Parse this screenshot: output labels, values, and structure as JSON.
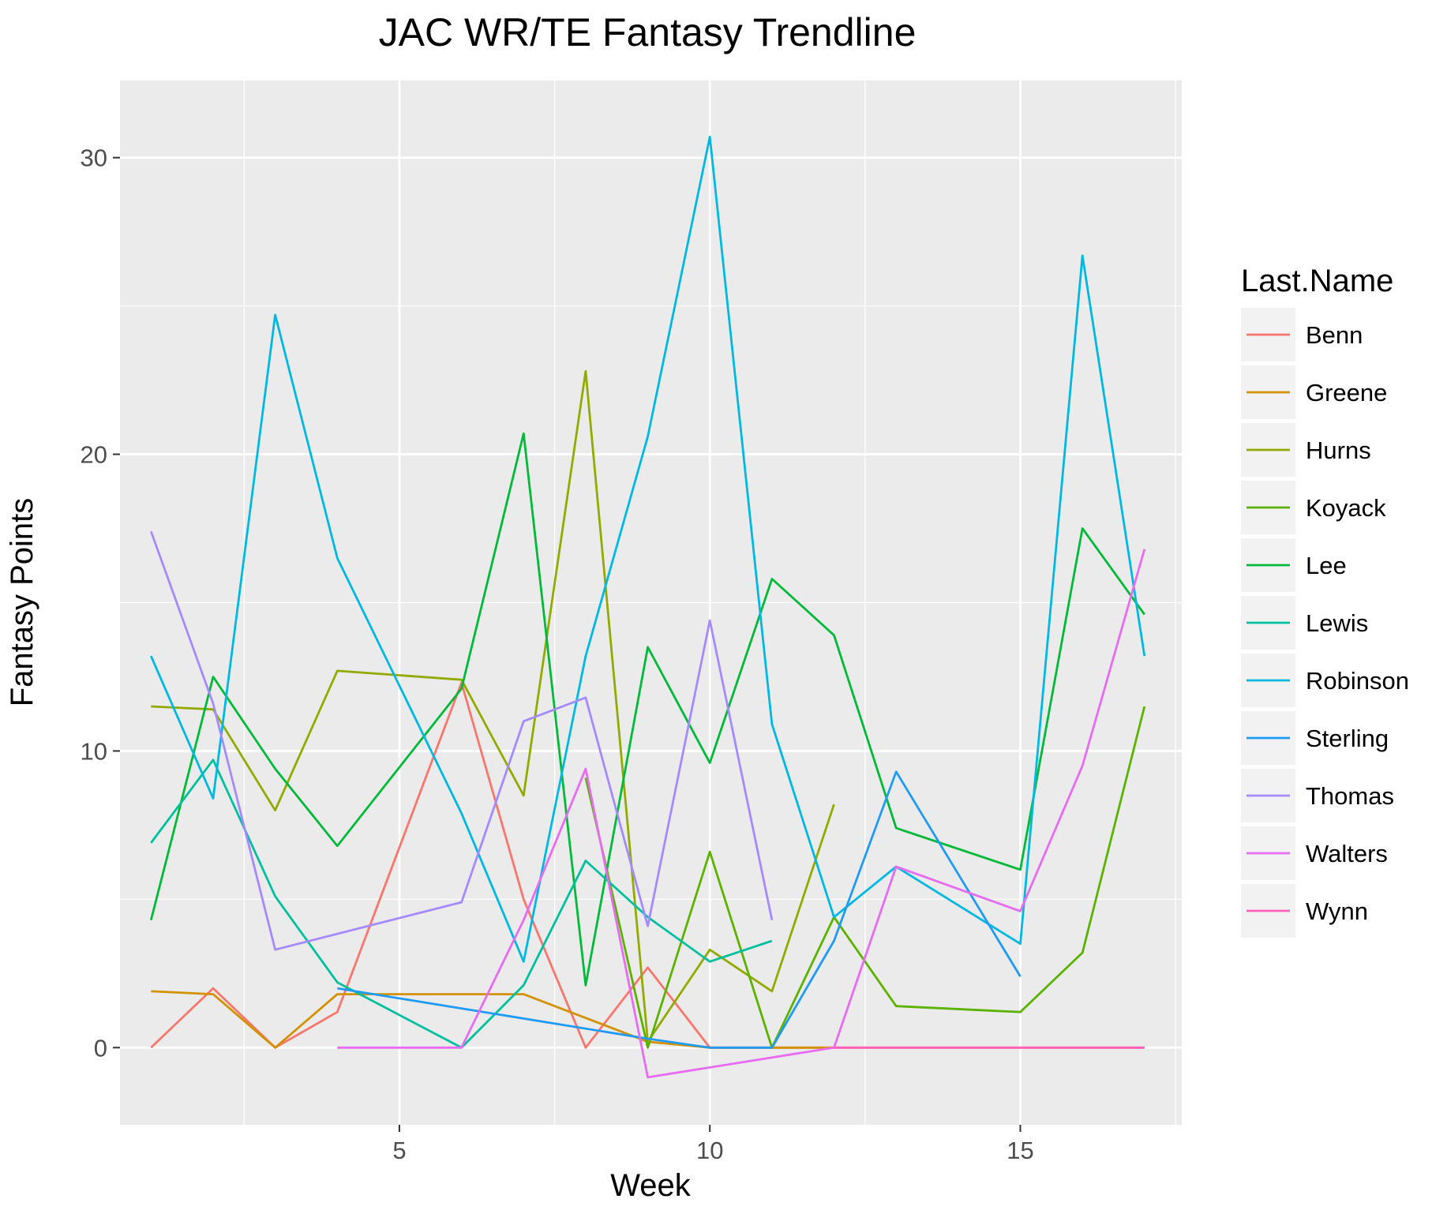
{
  "chart_data": {
    "type": "line",
    "title": "JAC WR/TE Fantasy Trendline",
    "xlabel": "Week",
    "ylabel": "Fantasy Points",
    "xlim": [
      0.5,
      17.6
    ],
    "ylim": [
      -2.6,
      32.6
    ],
    "x_ticks": [
      5,
      10,
      15
    ],
    "y_ticks": [
      0,
      10,
      20,
      30
    ],
    "grid": true,
    "legend": {
      "title": "Last.Name",
      "position": "right"
    },
    "series": [
      {
        "name": "Benn",
        "color": "#F8766D",
        "points": [
          [
            1,
            0
          ],
          [
            2,
            2
          ],
          [
            3,
            0
          ],
          [
            4,
            1.2
          ],
          [
            6,
            12.3
          ],
          [
            7,
            5
          ],
          [
            8,
            0
          ],
          [
            9,
            2.7
          ],
          [
            10,
            0
          ],
          [
            11,
            0
          ],
          [
            12,
            0
          ],
          [
            13,
            0
          ],
          [
            14,
            0
          ],
          [
            15,
            0
          ],
          [
            16,
            0
          ],
          [
            17,
            0
          ]
        ]
      },
      {
        "name": "Greene",
        "color": "#D39200",
        "points": [
          [
            1,
            1.9
          ],
          [
            2,
            1.8
          ],
          [
            3,
            0
          ],
          [
            4,
            1.8
          ],
          [
            5,
            1.8
          ],
          [
            6,
            1.8
          ],
          [
            7,
            1.8
          ],
          [
            9,
            0.2
          ],
          [
            10,
            0
          ],
          [
            11,
            0
          ],
          [
            12,
            0
          ]
        ]
      },
      {
        "name": "Hurns",
        "color": "#93AA00",
        "points": [
          [
            1,
            11.5
          ],
          [
            2,
            11.4
          ],
          [
            3,
            8
          ],
          [
            4,
            12.7
          ],
          [
            6,
            12.4
          ],
          [
            7,
            8.5
          ],
          [
            8,
            22.8
          ],
          [
            9,
            0.2
          ],
          [
            10,
            3.3
          ],
          [
            11,
            1.9
          ],
          [
            12,
            8.2
          ]
        ]
      },
      {
        "name": "Koyack",
        "color": "#5BB300",
        "points": [
          [
            8,
            9.1
          ],
          [
            9,
            0
          ],
          [
            10,
            6.6
          ],
          [
            11,
            0
          ],
          [
            12,
            4.4
          ],
          [
            13,
            1.4
          ],
          [
            15,
            1.2
          ],
          [
            16,
            3.2
          ],
          [
            17,
            11.5
          ]
        ]
      },
      {
        "name": "Lee",
        "color": "#00BA38",
        "points": [
          [
            1,
            4.3
          ],
          [
            2,
            12.5
          ],
          [
            3,
            9.4
          ],
          [
            4,
            6.8
          ],
          [
            6,
            12.1
          ],
          [
            7,
            20.7
          ],
          [
            8,
            2.1
          ],
          [
            9,
            13.5
          ],
          [
            10,
            9.6
          ],
          [
            11,
            15.8
          ],
          [
            12,
            13.9
          ],
          [
            13,
            7.4
          ],
          [
            15,
            6
          ],
          [
            16,
            17.5
          ],
          [
            17,
            14.6
          ]
        ]
      },
      {
        "name": "Lewis",
        "color": "#00C19F",
        "points": [
          [
            1,
            6.9
          ],
          [
            2,
            9.7
          ],
          [
            3,
            5.1
          ],
          [
            4,
            2.2
          ],
          [
            6,
            0
          ],
          [
            7,
            2.1
          ],
          [
            8,
            6.3
          ],
          [
            9,
            4.4
          ],
          [
            10,
            2.9
          ],
          [
            11,
            3.6
          ]
        ]
      },
      {
        "name": "Robinson",
        "color": "#00B9E3",
        "points": [
          [
            1,
            13.2
          ],
          [
            2,
            8.4
          ],
          [
            3,
            24.7
          ],
          [
            4,
            16.5
          ],
          [
            6,
            7.9
          ],
          [
            7,
            2.9
          ],
          [
            8,
            13.2
          ],
          [
            9,
            20.6
          ],
          [
            10,
            30.7
          ],
          [
            11,
            10.9
          ],
          [
            12,
            4.4
          ],
          [
            13,
            6.1
          ],
          [
            15,
            3.5
          ],
          [
            16,
            26.7
          ],
          [
            17,
            13.2
          ]
        ]
      },
      {
        "name": "Sterling",
        "color": "#1F9BF7",
        "points": [
          [
            4,
            2
          ],
          [
            9,
            0.3
          ],
          [
            10,
            0
          ],
          [
            11,
            0
          ],
          [
            12,
            3.6
          ],
          [
            13,
            9.3
          ],
          [
            15,
            2.4
          ]
        ]
      },
      {
        "name": "Thomas",
        "color": "#A58AFF",
        "points": [
          [
            1,
            17.4
          ],
          [
            2,
            11.6
          ],
          [
            3,
            3.3
          ],
          [
            6,
            4.9
          ],
          [
            7,
            11
          ],
          [
            8,
            11.8
          ],
          [
            9,
            4.1
          ],
          [
            10,
            14.4
          ],
          [
            11,
            4.3
          ]
        ]
      },
      {
        "name": "Walters",
        "color": "#E76BF3",
        "points": [
          [
            4,
            0
          ],
          [
            5,
            0
          ],
          [
            6,
            0
          ],
          [
            7,
            4.3
          ],
          [
            8,
            9.4
          ],
          [
            9,
            -1
          ],
          [
            12,
            0
          ],
          [
            13,
            6.1
          ],
          [
            15,
            4.6
          ],
          [
            16,
            9.5
          ],
          [
            17,
            16.8
          ]
        ]
      },
      {
        "name": "Wynn",
        "color": "#FF62BC",
        "points": [
          [
            12,
            0
          ],
          [
            13,
            0
          ],
          [
            14,
            0
          ],
          [
            15,
            0
          ],
          [
            16,
            0
          ],
          [
            17,
            0
          ]
        ]
      }
    ]
  }
}
